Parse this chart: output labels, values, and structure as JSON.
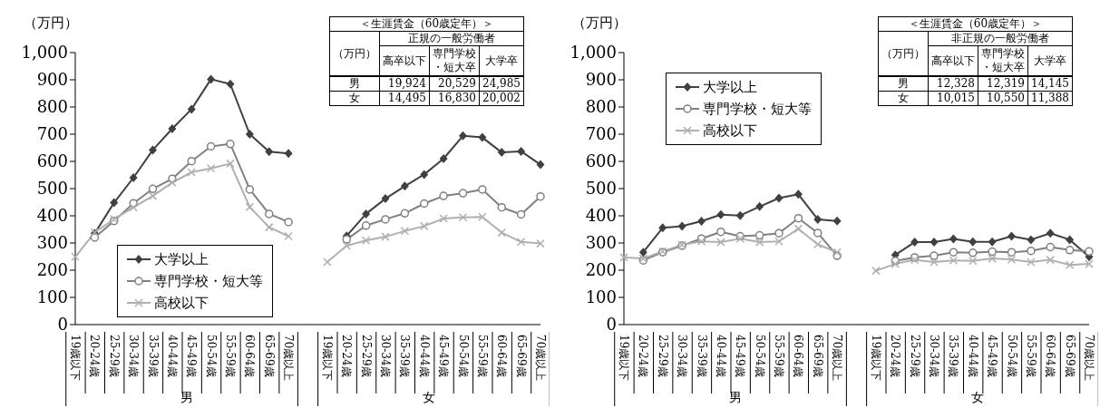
{
  "chart_data": [
    {
      "type": "line",
      "ylabel": "（万円）",
      "categories": [
        "19歳以下",
        "20-24歳",
        "25-29歳",
        "30-34歳",
        "35-39歳",
        "40-44歳",
        "45-49歳",
        "50-54歳",
        "55-59歳",
        "60-64歳",
        "65-69歳",
        "70歳以上",
        null,
        "19歳以下",
        "20-24歳",
        "25-29歳",
        "30-34歳",
        "35-39歳",
        "40-44歳",
        "45-49歳",
        "50-54歳",
        "55-59歳",
        "60-64歳",
        "65-69歳",
        "70歳以上"
      ],
      "ylim": [
        0,
        1000
      ],
      "yticks": [
        0,
        100,
        200,
        300,
        400,
        500,
        600,
        700,
        800,
        900,
        {
          "value": 1000,
          "label": "1,000"
        }
      ],
      "legend": "bottom left",
      "annotations": [
        "男",
        "女"
      ],
      "series": [
        {
          "name": "大学以上",
          "color": "#404040",
          "marker": "diamond",
          "values": [
            null,
            335,
            448,
            540,
            642,
            720,
            792,
            902,
            884,
            700,
            636,
            629,
            null,
            null,
            326,
            407,
            463,
            509,
            552,
            610,
            694,
            688,
            633,
            637,
            588
          ]
        },
        {
          "name": "専門学校・短大等",
          "color": "#808080",
          "marker": "circle",
          "values": [
            null,
            320,
            381,
            446,
            499,
            536,
            601,
            655,
            664,
            497,
            407,
            377,
            null,
            null,
            313,
            364,
            387,
            409,
            445,
            473,
            483,
            497,
            431,
            405,
            471
          ]
        },
        {
          "name": "高校以下",
          "color": "#b0b0b0",
          "marker": "cross",
          "values": [
            249,
            339,
            387,
            431,
            473,
            522,
            560,
            574,
            592,
            432,
            358,
            325,
            null,
            230,
            290,
            309,
            323,
            344,
            362,
            390,
            394,
            396,
            338,
            304,
            298
          ]
        }
      ]
    },
    {
      "type": "other",
      "title": "＜生涯賃金（60歳定年）＞",
      "subtitle": "正規の一般労働者",
      "ylabel": "（万円）",
      "categories": [
        "高卒以下",
        "専門学校・短大卒",
        "大学卒"
      ],
      "y_categories": [
        "男",
        "女"
      ],
      "cell_labels": [
        [
          "19,924",
          "20,529",
          "24,985"
        ],
        [
          "14,495",
          "16,830",
          "20,002"
        ]
      ]
    },
    {
      "type": "line",
      "ylabel": "（万円）",
      "categories": [
        "19歳以下",
        "20-24歳",
        "25-29歳",
        "30-34歳",
        "35-39歳",
        "40-44歳",
        "45-49歳",
        "50-54歳",
        "55-59歳",
        "60-64歳",
        "65-69歳",
        "70歳以上",
        null,
        "19歳以下",
        "20-24歳",
        "25-29歳",
        "30-34歳",
        "35-39歳",
        "40-44歳",
        "45-49歳",
        "50-54歳",
        "55-59歳",
        "60-64歳",
        "65-69歳",
        "70歳以上"
      ],
      "ylim": [
        0,
        1000
      ],
      "yticks": [
        0,
        100,
        200,
        300,
        400,
        500,
        600,
        700,
        800,
        900,
        {
          "value": 1000,
          "label": "1,000"
        }
      ],
      "legend": "top left",
      "annotations": [
        "男",
        "女"
      ],
      "series": [
        {
          "name": "大学以上",
          "color": "#404040",
          "marker": "diamond",
          "values": [
            null,
            266,
            356,
            362,
            380,
            404,
            401,
            434,
            465,
            479,
            387,
            381,
            null,
            null,
            256,
            303,
            303,
            315,
            304,
            304,
            325,
            312,
            336,
            312,
            249
          ]
        },
        {
          "name": "専門学校・短大等",
          "color": "#808080",
          "marker": "circle",
          "values": [
            null,
            236,
            266,
            290,
            316,
            341,
            325,
            328,
            336,
            391,
            337,
            253,
            null,
            null,
            234,
            247,
            253,
            266,
            264,
            268,
            266,
            271,
            285,
            274,
            269
          ]
        },
        {
          "name": "高校以下",
          "color": "#b0b0b0",
          "marker": "cross",
          "values": [
            247,
            243,
            269,
            293,
            306,
            303,
            316,
            303,
            306,
            352,
            295,
            266,
            null,
            198,
            223,
            238,
            230,
            236,
            234,
            243,
            239,
            230,
            238,
            219,
            223
          ]
        }
      ]
    },
    {
      "type": "other",
      "title": "＜生涯賃金（60歳定年）＞",
      "subtitle": "非正規の一般労働者",
      "ylabel": "（万円）",
      "categories": [
        "高卒以下",
        "専門学校・短大卒",
        "大学卒"
      ],
      "y_categories": [
        "男",
        "女"
      ],
      "cell_labels": [
        [
          "12,328",
          "12,319",
          "14,145"
        ],
        [
          "10,015",
          "10,550",
          "11,388"
        ]
      ]
    }
  ]
}
